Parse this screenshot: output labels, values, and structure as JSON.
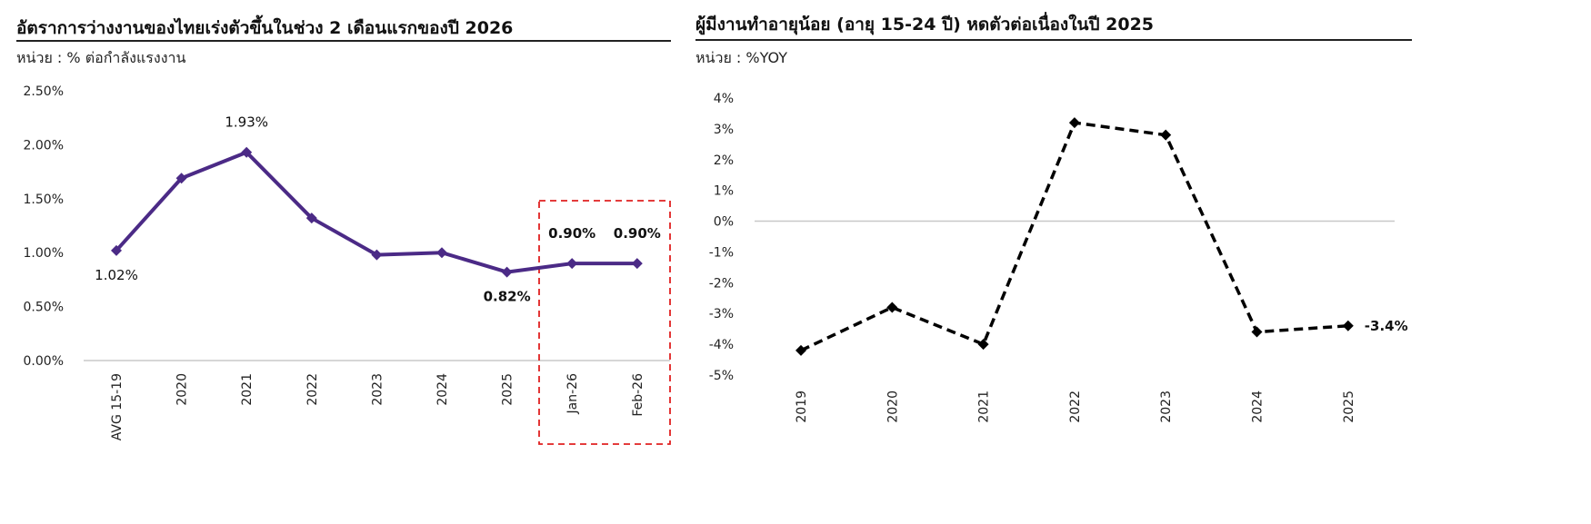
{
  "chart_data": [
    {
      "type": "line",
      "title": "อัตราการว่างงานของไทยเร่งตัวขึ้นในช่วง 2 เดือนแรกของปี 2026",
      "unit_label": "หน่วย : % ต่อกำลังแรงงาน",
      "categories": [
        "AVG 15-19",
        "2020",
        "2021",
        "2022",
        "2023",
        "2024",
        "2025",
        "Jan-26",
        "Feb-26"
      ],
      "series": [
        {
          "values": [
            1.02,
            1.69,
            1.93,
            1.32,
            0.98,
            1.0,
            0.82,
            0.9,
            0.9
          ]
        }
      ],
      "data_labels": [
        "1.02%",
        "",
        "1.93%",
        "",
        "",
        "",
        "0.82%",
        "0.90%",
        "0.90%"
      ],
      "y_ticks": [
        "2.50%",
        "2.00%",
        "1.50%",
        "1.00%",
        "0.50%",
        "0.00%"
      ],
      "ylim": [
        0,
        2.5
      ],
      "line_color": "#4b2a86",
      "highlight_box_color": "#e02020",
      "grid": false
    },
    {
      "type": "line",
      "title": "ผู้มีงานทำอายุน้อย (อายุ 15-24 ปี) หดตัวต่อเนื่องในปี 2025",
      "unit_label": "หน่วย : %YOY",
      "categories": [
        "2019",
        "2020",
        "2021",
        "2022",
        "2023",
        "2024",
        "2025"
      ],
      "series": [
        {
          "values": [
            -4.2,
            -2.8,
            -4.0,
            3.2,
            2.8,
            -3.6,
            -3.4
          ]
        }
      ],
      "data_labels": [
        "",
        "",
        "",
        "",
        "",
        "",
        "-3.4%"
      ],
      "y_ticks": [
        "4%",
        "3%",
        "2%",
        "1%",
        "0%",
        "-1%",
        "-2%",
        "-3%",
        "-4%",
        "-5%"
      ],
      "ylim": [
        -5,
        4
      ],
      "line_color": "#000000",
      "line_style": "dashed",
      "zero_line_color": "#c8c8c8",
      "grid": false
    }
  ]
}
